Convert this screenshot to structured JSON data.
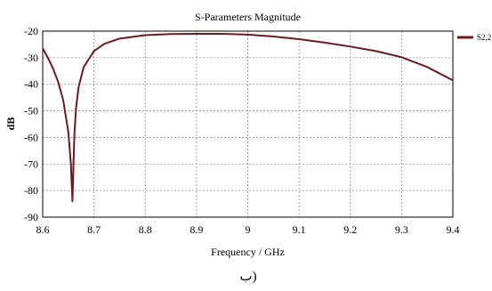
{
  "caption": "ب)",
  "chart_data": {
    "type": "line",
    "title": "S-Parameters Magnitude",
    "xlabel": "Frequency / GHz",
    "ylabel": "dB",
    "xlim": [
      8.6,
      9.4
    ],
    "ylim": [
      -90,
      -20
    ],
    "xticks": [
      8.6,
      8.7,
      8.8,
      8.9,
      9,
      9.1,
      9.2,
      9.3,
      9.4
    ],
    "xtick_labels": [
      "8.6",
      "8.7",
      "8.8",
      "8.9",
      "9",
      "9.1",
      "9.2",
      "9.3",
      "9.4"
    ],
    "yticks": [
      -20,
      -30,
      -40,
      -50,
      -60,
      -70,
      -80,
      -90
    ],
    "ytick_labels": [
      "-20",
      "-30",
      "-40",
      "-50",
      "-60",
      "-70",
      "-80",
      "-90"
    ],
    "grid": true,
    "legend_position": "top-right",
    "series": [
      {
        "name": "S2,2",
        "color": "#6b1a22",
        "x": [
          8.6,
          8.61,
          8.62,
          8.63,
          8.64,
          8.65,
          8.655,
          8.658,
          8.66,
          8.662,
          8.665,
          8.67,
          8.68,
          8.7,
          8.72,
          8.75,
          8.8,
          8.85,
          8.9,
          8.95,
          9.0,
          9.05,
          9.1,
          9.15,
          9.2,
          9.25,
          9.3,
          9.35,
          9.4
        ],
        "y": [
          -26.5,
          -30.0,
          -34.0,
          -39.0,
          -46.0,
          -58.0,
          -70.0,
          -84.0,
          -70.0,
          -58.0,
          -49.0,
          -41.0,
          -33.5,
          -27.5,
          -24.8,
          -22.8,
          -21.5,
          -21.1,
          -21.0,
          -21.0,
          -21.3,
          -22.0,
          -23.0,
          -24.3,
          -25.8,
          -27.5,
          -29.8,
          -33.5,
          -38.5
        ]
      }
    ]
  }
}
